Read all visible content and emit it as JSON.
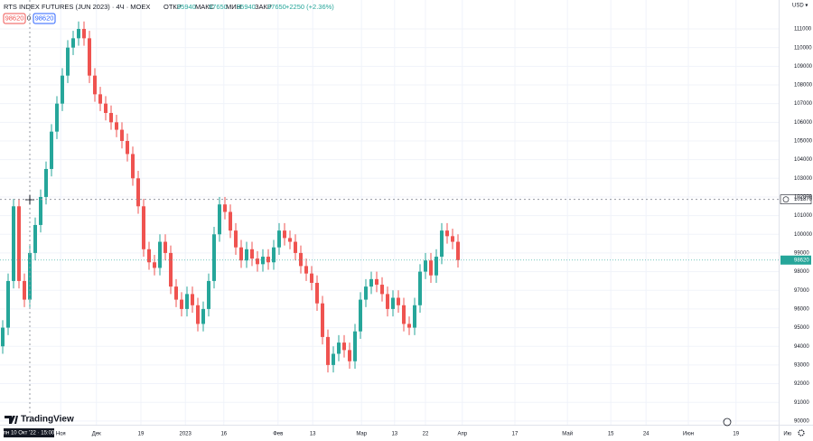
{
  "header": {
    "symbol": "RTS INDEX FUTURES (JUN 2023) · 4Ч · MOEX",
    "open_label": "ОТКР",
    "open": 95940,
    "high_label": "МАКС",
    "high": 97650,
    "low_label": "МИН",
    "low": 95940,
    "close_label": "ЗАКР",
    "close": 97650,
    "change": "+2250 (+2.36%)",
    "badges": [
      98620,
      0,
      98620
    ]
  },
  "currency": "USD ▾",
  "logo": "TradingView",
  "chart_data": {
    "type": "candlestick",
    "open": [
      94000,
      95000,
      97500,
      101500,
      97500,
      96500,
      99000,
      100500,
      102000,
      103500,
      105500,
      107000,
      108500,
      110000,
      110500,
      111000,
      110500,
      108500,
      107500,
      107000,
      106500,
      106000,
      105600,
      105000,
      104300,
      103000,
      101500,
      99200,
      98500,
      98200,
      99600,
      99000,
      97200,
      96500,
      96000,
      96800,
      96200,
      95200,
      96000,
      97500,
      100000,
      101600,
      101200,
      100200,
      99300,
      98600,
      99200,
      98700,
      98400,
      98800,
      98500,
      99300,
      100200,
      99800,
      99600,
      99000,
      98300,
      97900,
      97400,
      96300,
      94500,
      93000,
      93600,
      94200,
      93800,
      93200,
      94800,
      96500,
      97200,
      97600,
      97300,
      96800,
      96000,
      96600,
      96200,
      95200,
      95000,
      96200,
      98000,
      98600,
      97800,
      98800,
      100200,
      99900,
      99600
    ],
    "high": [
      95400,
      97900,
      101900,
      101900,
      97900,
      99400,
      100900,
      102400,
      103900,
      105900,
      107400,
      108900,
      110400,
      110900,
      111400,
      111400,
      110900,
      108900,
      107900,
      107400,
      106900,
      106400,
      106000,
      105400,
      104700,
      103400,
      101900,
      99600,
      98900,
      100000,
      100000,
      99400,
      97600,
      96900,
      97200,
      97200,
      96600,
      96400,
      97900,
      100400,
      102000,
      102000,
      101600,
      100600,
      99700,
      99600,
      99600,
      99100,
      99200,
      99200,
      99700,
      100600,
      100600,
      100200,
      100000,
      99400,
      98700,
      98300,
      97800,
      96700,
      94900,
      94000,
      94600,
      94600,
      94200,
      95200,
      96900,
      97600,
      98000,
      98000,
      97700,
      97200,
      97000,
      97000,
      96600,
      95600,
      96600,
      98400,
      99000,
      99000,
      99200,
      100600,
      100600,
      100300,
      100000
    ],
    "low": [
      93600,
      94600,
      97100,
      97100,
      96100,
      96100,
      98600,
      100100,
      101600,
      103100,
      105100,
      106600,
      108100,
      109600,
      110100,
      110100,
      108100,
      107100,
      106600,
      106100,
      105600,
      105200,
      104600,
      103900,
      102600,
      101100,
      98800,
      98100,
      97800,
      97800,
      98600,
      96800,
      96100,
      95600,
      95600,
      95800,
      94800,
      94800,
      95600,
      97100,
      99600,
      100800,
      99800,
      98900,
      98200,
      98200,
      98300,
      98000,
      98000,
      98100,
      98100,
      98900,
      99400,
      99200,
      98600,
      97900,
      97500,
      97000,
      95900,
      94100,
      92600,
      92600,
      93200,
      93400,
      92800,
      92800,
      94400,
      96100,
      96800,
      96900,
      96400,
      95600,
      95600,
      95800,
      94800,
      94600,
      94600,
      95800,
      97600,
      97400,
      97400,
      98400,
      99500,
      99200,
      98220
    ],
    "close": [
      95000,
      97500,
      101500,
      97500,
      96500,
      99000,
      100500,
      102000,
      103500,
      105500,
      107000,
      108500,
      110000,
      110500,
      111000,
      110500,
      108500,
      107500,
      107000,
      106500,
      106000,
      105600,
      105000,
      104300,
      103000,
      101500,
      99200,
      98500,
      98200,
      99600,
      99000,
      97200,
      96500,
      96000,
      96800,
      96200,
      95200,
      96000,
      97500,
      100000,
      101600,
      101200,
      100200,
      99300,
      98600,
      99200,
      98700,
      98400,
      98800,
      98500,
      99300,
      100200,
      99800,
      99600,
      99000,
      98300,
      97900,
      97400,
      96300,
      94500,
      93000,
      93600,
      94200,
      93800,
      93200,
      94800,
      96500,
      97200,
      97600,
      97300,
      96800,
      96000,
      96600,
      96200,
      95200,
      95000,
      96200,
      98000,
      98600,
      97800,
      98800,
      100200,
      99900,
      99600,
      98620
    ],
    "up_color": "#26a69a",
    "down_color": "#ef5350",
    "ylim": [
      89800,
      112550
    ],
    "yticks": [
      90000,
      91000,
      92000,
      93000,
      94000,
      95000,
      96000,
      97000,
      98000,
      99000,
      100000,
      101000,
      102000,
      103000,
      104000,
      105000,
      106000,
      107000,
      108000,
      109000,
      110000,
      111000
    ],
    "xlim": [
      0,
      143.67
    ],
    "xticks": [
      {
        "value": 11.2,
        "label": "Ноя"
      },
      {
        "value": 17.8,
        "label": "Дек"
      },
      {
        "value": 26,
        "label": "19"
      },
      {
        "value": 34.2,
        "label": "2023"
      },
      {
        "value": 41.3,
        "label": "16"
      },
      {
        "value": 51.3,
        "label": "Фев"
      },
      {
        "value": 57.7,
        "label": "13"
      },
      {
        "value": 66.7,
        "label": "Мар"
      },
      {
        "value": 72.8,
        "label": "13"
      },
      {
        "value": 78.5,
        "label": "22"
      },
      {
        "value": 85.3,
        "label": "Апр"
      },
      {
        "value": 95,
        "label": "17"
      },
      {
        "value": 104.7,
        "label": "Май"
      },
      {
        "value": 112.7,
        "label": "15"
      },
      {
        "value": 119.2,
        "label": "24"
      },
      {
        "value": 127,
        "label": "Июн"
      },
      {
        "value": 135.8,
        "label": "19"
      },
      {
        "value": 145.3,
        "label": "Ию"
      }
    ],
    "grid": true,
    "crosshair": {
      "value": 101870,
      "x_label": "пн 10 Окт '22 · 15:00"
    },
    "last_price": 98620
  }
}
